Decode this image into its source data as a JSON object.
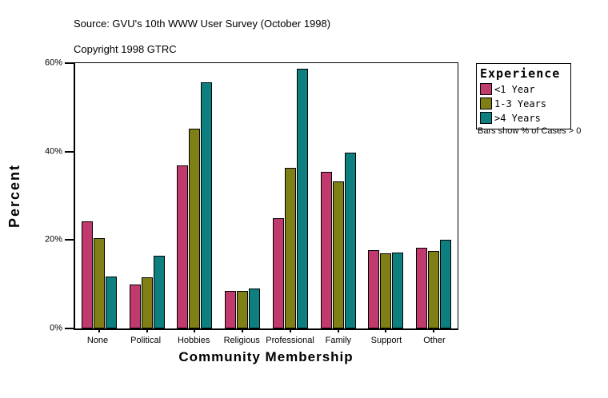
{
  "header": {
    "source": "Source: GVU's 10th WWW User Survey (October 1998)",
    "copyright": "Copyright 1998 GTRC"
  },
  "chart_data": {
    "type": "bar",
    "title": "",
    "xlabel": "Community Membership",
    "ylabel": "Percent",
    "ylim": [
      0,
      60
    ],
    "yticks": [
      0,
      20,
      40,
      60
    ],
    "ytick_labels": [
      "0%",
      "20%",
      "40%",
      "60%"
    ],
    "grid": false,
    "legend_position": "right",
    "categories": [
      "None",
      "Political",
      "Hobbies",
      "Religious",
      "Professional",
      "Family",
      "Support",
      "Other"
    ],
    "series": [
      {
        "name": "<1 Year",
        "color": "#C13A6D",
        "values": [
          24.2,
          9.9,
          36.8,
          8.5,
          25.0,
          35.5,
          17.7,
          18.2
        ]
      },
      {
        "name": "1-3 Years",
        "color": "#7F7F15",
        "values": [
          20.4,
          11.5,
          45.2,
          8.5,
          36.3,
          33.2,
          17.0,
          17.6
        ]
      },
      {
        "name": ">4 Years",
        "color": "#0E7F7F",
        "values": [
          11.7,
          16.4,
          55.7,
          9.0,
          58.8,
          39.7,
          17.1,
          20.0
        ]
      }
    ]
  },
  "legend": {
    "title": "Experience",
    "note": "Bars show % of Cases > 0"
  }
}
